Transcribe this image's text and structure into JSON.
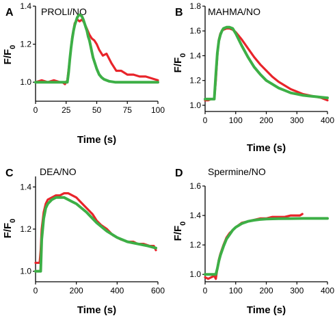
{
  "colors": {
    "data": "#e8242a",
    "fit": "#3daf46",
    "axis": "#000000"
  },
  "chart_data": [
    {
      "type": "line",
      "panel_letter": "A",
      "title": "PROLI/NO",
      "xlabel": "Time (s)",
      "ylabel": "F/F",
      "ylabel_subscript": "0",
      "xlim": [
        0,
        100
      ],
      "ylim": [
        0.9,
        1.4
      ],
      "xticks": [
        0,
        25,
        50,
        75,
        100
      ],
      "yticks": [
        1.0,
        1.2,
        1.4
      ],
      "ytick_labels": [
        "1.0",
        "1.2",
        "1.4"
      ],
      "series": [
        {
          "role": "data",
          "color": "#e8242a",
          "x": [
            0,
            5,
            10,
            15,
            20,
            22,
            24,
            26,
            28,
            30,
            32,
            34,
            36,
            38,
            40,
            42,
            44,
            46,
            48,
            50,
            52,
            55,
            58,
            62,
            66,
            70,
            75,
            80,
            85,
            90,
            95,
            100
          ],
          "y": [
            1.0,
            1.01,
            1.0,
            1.01,
            1.0,
            1.0,
            0.99,
            1.01,
            1.12,
            1.24,
            1.31,
            1.33,
            1.32,
            1.33,
            1.31,
            1.28,
            1.25,
            1.23,
            1.22,
            1.2,
            1.17,
            1.14,
            1.15,
            1.1,
            1.06,
            1.06,
            1.04,
            1.04,
            1.03,
            1.03,
            1.02,
            1.01
          ]
        },
        {
          "role": "fit",
          "color": "#3daf46",
          "x": [
            0,
            26,
            27,
            28,
            29,
            30,
            31,
            32,
            33,
            34,
            35,
            36,
            37,
            38,
            39,
            40,
            41,
            42,
            43,
            44,
            45,
            46,
            47,
            48,
            49,
            50,
            51,
            52,
            54,
            56,
            58,
            60,
            65,
            70,
            80,
            100
          ],
          "y": [
            1.0,
            1.0,
            1.05,
            1.12,
            1.18,
            1.23,
            1.27,
            1.3,
            1.32,
            1.34,
            1.35,
            1.355,
            1.352,
            1.345,
            1.33,
            1.31,
            1.29,
            1.27,
            1.24,
            1.22,
            1.19,
            1.16,
            1.13,
            1.11,
            1.09,
            1.07,
            1.055,
            1.04,
            1.025,
            1.015,
            1.01,
            1.005,
            1.0,
            1.0,
            1.0,
            1.0
          ]
        }
      ]
    },
    {
      "type": "line",
      "panel_letter": "B",
      "title": "MAHMA/NO",
      "xlabel": "Time (s)",
      "ylabel": "F/F",
      "ylabel_subscript": "0",
      "xlim": [
        0,
        400
      ],
      "ylim": [
        0.95,
        1.8
      ],
      "xticks": [
        0,
        100,
        200,
        300,
        400
      ],
      "yticks": [
        1.0,
        1.2,
        1.4,
        1.6,
        1.8
      ],
      "ytick_labels": [
        "1.0",
        "1.2",
        "1.4",
        "1.6",
        "1.8"
      ],
      "series": [
        {
          "role": "data",
          "color": "#e8242a",
          "x": [
            0,
            10,
            20,
            30,
            35,
            40,
            45,
            50,
            55,
            60,
            70,
            80,
            90,
            100,
            120,
            140,
            160,
            180,
            200,
            220,
            240,
            260,
            280,
            300,
            320,
            340,
            360,
            380,
            400
          ],
          "y": [
            1.04,
            1.04,
            1.05,
            1.05,
            1.2,
            1.4,
            1.53,
            1.58,
            1.6,
            1.61,
            1.62,
            1.62,
            1.61,
            1.59,
            1.53,
            1.46,
            1.39,
            1.33,
            1.28,
            1.23,
            1.19,
            1.16,
            1.13,
            1.11,
            1.09,
            1.08,
            1.07,
            1.06,
            1.04
          ]
        },
        {
          "role": "fit",
          "color": "#3daf46",
          "x": [
            0,
            30,
            35,
            40,
            45,
            50,
            55,
            60,
            70,
            80,
            90,
            100,
            110,
            120,
            140,
            160,
            180,
            200,
            220,
            240,
            260,
            280,
            300,
            320,
            340,
            360,
            380,
            400
          ],
          "y": [
            1.05,
            1.05,
            1.25,
            1.42,
            1.52,
            1.57,
            1.6,
            1.62,
            1.63,
            1.63,
            1.62,
            1.58,
            1.53,
            1.48,
            1.39,
            1.31,
            1.25,
            1.2,
            1.17,
            1.14,
            1.12,
            1.1,
            1.09,
            1.08,
            1.075,
            1.07,
            1.065,
            1.06
          ]
        }
      ]
    },
    {
      "type": "line",
      "panel_letter": "C",
      "title": "DEA/NO",
      "xlabel": "Time (s)",
      "ylabel": "F/F",
      "ylabel_subscript": "0",
      "xlim": [
        0,
        600
      ],
      "ylim": [
        0.95,
        1.45
      ],
      "xticks": [
        0,
        200,
        400,
        600
      ],
      "yticks": [
        1.0,
        1.2,
        1.4
      ],
      "ytick_labels": [
        "1.0",
        "1.2",
        "1.4"
      ],
      "series": [
        {
          "role": "data",
          "color": "#e8242a",
          "x": [
            0,
            10,
            20,
            25,
            30,
            40,
            50,
            60,
            80,
            100,
            120,
            140,
            160,
            180,
            200,
            220,
            250,
            280,
            300,
            320,
            350,
            380,
            400,
            420,
            450,
            480,
            500,
            530,
            560,
            580,
            590
          ],
          "y": [
            1.04,
            1.04,
            1.04,
            1.1,
            1.2,
            1.28,
            1.32,
            1.34,
            1.35,
            1.36,
            1.36,
            1.37,
            1.37,
            1.36,
            1.35,
            1.33,
            1.3,
            1.27,
            1.24,
            1.22,
            1.2,
            1.17,
            1.16,
            1.15,
            1.14,
            1.14,
            1.13,
            1.13,
            1.12,
            1.12,
            1.1
          ]
        },
        {
          "role": "fit",
          "color": "#3daf46",
          "x": [
            0,
            25,
            30,
            40,
            50,
            60,
            80,
            100,
            120,
            140,
            160,
            180,
            200,
            250,
            300,
            350,
            400,
            450,
            500,
            550,
            590
          ],
          "y": [
            1.0,
            1.0,
            1.15,
            1.25,
            1.3,
            1.32,
            1.34,
            1.35,
            1.35,
            1.35,
            1.34,
            1.33,
            1.32,
            1.28,
            1.23,
            1.19,
            1.16,
            1.14,
            1.13,
            1.12,
            1.11
          ]
        }
      ]
    },
    {
      "type": "line",
      "panel_letter": "D",
      "title": "Spermine/NO",
      "xlabel": "Time (s)",
      "ylabel": "F/F",
      "ylabel_subscript": "0",
      "xlim": [
        0,
        400
      ],
      "ylim": [
        0.95,
        1.6
      ],
      "xticks": [
        0,
        100,
        200,
        300,
        400
      ],
      "yticks": [
        1.0,
        1.2,
        1.4,
        1.6
      ],
      "ytick_labels": [
        "1.0",
        "1.2",
        "1.4",
        "1.6"
      ],
      "series": [
        {
          "role": "data",
          "color": "#e8242a",
          "x": [
            0,
            10,
            20,
            30,
            35,
            40,
            45,
            50,
            60,
            70,
            80,
            90,
            100,
            120,
            140,
            160,
            180,
            200,
            220,
            240,
            260,
            280,
            300,
            310,
            318
          ],
          "y": [
            0.98,
            0.97,
            0.98,
            0.99,
            0.97,
            1.04,
            1.1,
            1.14,
            1.2,
            1.25,
            1.28,
            1.3,
            1.32,
            1.35,
            1.36,
            1.37,
            1.38,
            1.38,
            1.39,
            1.39,
            1.39,
            1.4,
            1.4,
            1.4,
            1.41
          ]
        },
        {
          "role": "fit",
          "color": "#3daf46",
          "x": [
            0,
            35,
            40,
            45,
            50,
            60,
            70,
            80,
            90,
            100,
            120,
            140,
            160,
            180,
            200,
            240,
            280,
            320,
            360,
            400
          ],
          "y": [
            1.0,
            1.0,
            1.04,
            1.09,
            1.13,
            1.19,
            1.24,
            1.27,
            1.3,
            1.32,
            1.345,
            1.36,
            1.368,
            1.373,
            1.376,
            1.378,
            1.379,
            1.38,
            1.38,
            1.38
          ]
        }
      ]
    }
  ]
}
